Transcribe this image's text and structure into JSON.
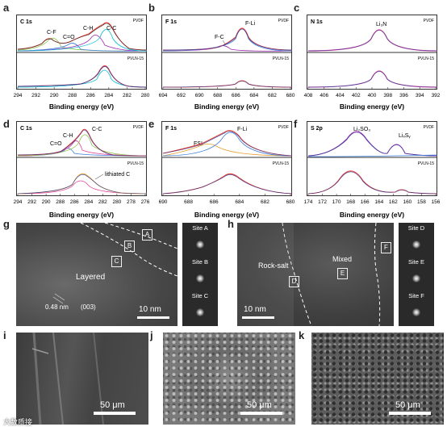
{
  "panels": {
    "a": {
      "label": "a",
      "sample_top": "PVDF",
      "sample_bottom": "PVLN-15",
      "title": "C 1s",
      "peaks": [
        "C-F",
        "C=O",
        "C-H",
        "C-C"
      ],
      "xticks": [
        "294",
        "292",
        "290",
        "288",
        "286",
        "284",
        "282",
        "280"
      ],
      "xlabel": "Binding energy (eV)"
    },
    "b": {
      "label": "b",
      "sample_top": "PVDF",
      "sample_bottom": "PVLN-15",
      "title": "F 1s",
      "peaks": [
        "F-Li",
        "F-C"
      ],
      "xticks": [
        "694",
        "692",
        "690",
        "688",
        "686",
        "684",
        "682",
        "680"
      ],
      "xlabel": "Binding energy (eV)"
    },
    "c": {
      "label": "c",
      "sample_top": "PVDF",
      "sample_bottom": "PVLN-15",
      "title": "N 1s",
      "peaks": [
        "Li₃N"
      ],
      "xticks": [
        "408",
        "406",
        "404",
        "402",
        "400",
        "398",
        "396",
        "394",
        "392"
      ],
      "xlabel": "Binding energy (eV)"
    },
    "d": {
      "label": "d",
      "sample_top": "PVDF",
      "sample_bottom": "PVLN-15",
      "title": "C 1s",
      "peaks": [
        "C=O",
        "C-H",
        "C-C",
        "lithiated C"
      ],
      "xticks": [
        "294",
        "292",
        "290",
        "288",
        "286",
        "284",
        "282",
        "280",
        "278",
        "276"
      ],
      "xlabel": "Binding energy (eV)"
    },
    "e": {
      "label": "e",
      "sample_top": "PVDF",
      "sample_bottom": "PVLN-15",
      "title": "F 1s",
      "peaks": [
        "FSI",
        "F-Li"
      ],
      "xticks": [
        "690",
        "688",
        "686",
        "684",
        "682",
        "680"
      ],
      "xlabel": "Binding energy (eV)"
    },
    "f": {
      "label": "f",
      "sample_top": "PVDF",
      "sample_bottom": "PVLN-15",
      "title": "S 2p",
      "peaks": [
        "Li₂SO₃",
        "LiₓSᵧ"
      ],
      "xticks": [
        "174",
        "172",
        "170",
        "168",
        "166",
        "164",
        "162",
        "160",
        "158",
        "156"
      ],
      "xlabel": "Binding energy (eV)"
    },
    "g": {
      "label": "g",
      "markers": [
        "A",
        "B",
        "C"
      ],
      "region": "Layered",
      "spacing": "0.48 nm",
      "plane": "(003)",
      "scale": "10 nm",
      "sites": [
        "Site A",
        "Site B",
        "Site C"
      ]
    },
    "h": {
      "label": "h",
      "markers": [
        "D",
        "E",
        "F"
      ],
      "region_left": "Rock-salt",
      "region_right": "Mixed",
      "scale": "10 nm",
      "sites": [
        "Site D",
        "Site E",
        "Site F"
      ]
    },
    "i": {
      "label": "i",
      "scale": "50 μm"
    },
    "j": {
      "label": "j",
      "scale": "50 μm"
    },
    "k": {
      "label": "k",
      "scale": "50 μm"
    }
  },
  "watermark": "大数质接"
}
